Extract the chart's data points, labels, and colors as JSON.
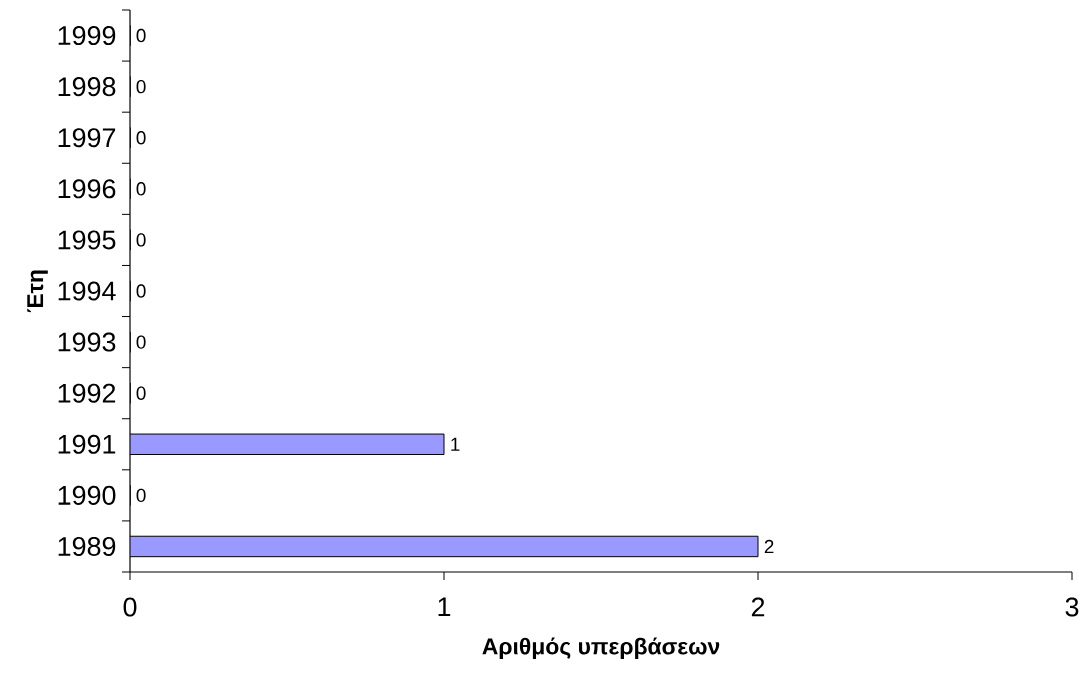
{
  "chart_data": {
    "type": "bar",
    "orientation": "horizontal",
    "categories": [
      "1999",
      "1998",
      "1997",
      "1996",
      "1995",
      "1994",
      "1993",
      "1992",
      "1991",
      "1990",
      "1989"
    ],
    "values": [
      0,
      0,
      0,
      0,
      0,
      0,
      0,
      0,
      1,
      0,
      2
    ],
    "color": "#9999ff",
    "xlim": [
      0,
      3
    ],
    "xticks": [
      0,
      1,
      2,
      3
    ],
    "xlabel": "Αριθμός υπερβάσεων",
    "ylabel": "Έτη",
    "data_labels": true
  }
}
